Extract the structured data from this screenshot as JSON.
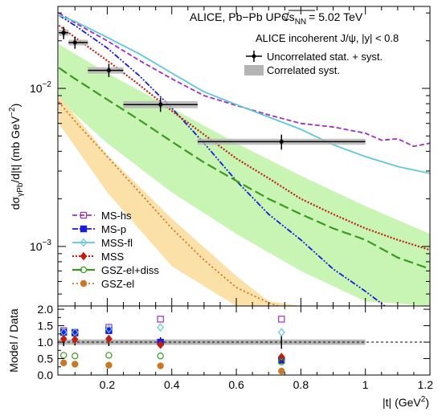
{
  "chart_data": [
    {
      "type": "line",
      "panel": "main",
      "title": "ALICE, Pb−Pb UPC",
      "energy_prefix": "√s",
      "energy_sub": "NN",
      "energy_value": "= 5.02 TeV",
      "ylabel": "dσγPb/d|t| (mb GeV⁻²)",
      "ylabel_main": "dσ",
      "ylabel_sub": "γPb",
      "ylabel_tail": "/d|t| (mb GeV",
      "ylabel_sup": "−2",
      "ylabel_close": ")",
      "xlim": [
        0.047,
        1.2
      ],
      "ylim": [
        0.00042,
        0.033
      ],
      "y_scale": "log",
      "ytick_labels": [
        {
          "value": 0.01,
          "base": "10",
          "exp": "−2"
        },
        {
          "value": 0.001,
          "base": "10",
          "exp": "−3"
        }
      ],
      "legend_top": {
        "header": "ALICE incoherent J/ψ, |y| < 0.8",
        "entries": [
          "Uncorrelated stat. + syst.",
          "Correlated syst."
        ]
      },
      "data_points": [
        {
          "x": 0.065,
          "xlo": 0.05,
          "xhi": 0.08,
          "y": 0.0225,
          "ylo": 0.0205,
          "yhi": 0.0245,
          "syst_lo": 0.0215,
          "syst_hi": 0.0235
        },
        {
          "x": 0.1,
          "xlo": 0.08,
          "xhi": 0.14,
          "y": 0.0195,
          "ylo": 0.0178,
          "yhi": 0.0212,
          "syst_lo": 0.0187,
          "syst_hi": 0.0203
        },
        {
          "x": 0.205,
          "xlo": 0.14,
          "xhi": 0.25,
          "y": 0.013,
          "ylo": 0.0118,
          "yhi": 0.0143,
          "syst_lo": 0.0124,
          "syst_hi": 0.0136
        },
        {
          "x": 0.365,
          "xlo": 0.25,
          "xhi": 0.48,
          "y": 0.0079,
          "ylo": 0.0071,
          "yhi": 0.0087,
          "syst_lo": 0.0075,
          "syst_hi": 0.0083
        },
        {
          "x": 0.74,
          "xlo": 0.48,
          "xhi": 1.0,
          "y": 0.0046,
          "ylo": 0.0041,
          "yhi": 0.0051,
          "syst_lo": 0.0044,
          "syst_hi": 0.0048
        }
      ],
      "bands": [
        {
          "name": "GSZ-el+diss",
          "color": "#c8f5b4",
          "x": [
            0.05,
            0.2,
            0.4,
            0.6,
            0.8,
            1.0,
            1.2
          ],
          "upper": [
            0.019,
            0.0125,
            0.0075,
            0.0045,
            0.0028,
            0.0018,
            0.0012
          ],
          "lower": [
            0.0085,
            0.0045,
            0.0022,
            0.0012,
            0.0007,
            0.00045,
            0.00042
          ]
        },
        {
          "name": "GSZ-el",
          "color": "#fbe0a8",
          "x": [
            0.05,
            0.2,
            0.4,
            0.6,
            0.7,
            0.8
          ],
          "upper": [
            0.009,
            0.0038,
            0.0015,
            0.00065,
            0.00045,
            0.00042
          ],
          "lower": [
            0.006,
            0.0022,
            0.00075,
            0.00042,
            0.00042,
            0.00042
          ]
        }
      ],
      "series": [
        {
          "name": "MS-hs",
          "color": "#a030c0",
          "x": [
            0.05,
            0.1,
            0.2,
            0.3,
            0.4,
            0.5,
            0.6,
            0.7,
            0.8,
            0.9,
            1.0,
            1.05,
            1.1,
            1.15,
            1.2
          ],
          "y": [
            0.03,
            0.026,
            0.02,
            0.015,
            0.0115,
            0.009,
            0.0078,
            0.0068,
            0.006,
            0.0057,
            0.0052,
            0.0047,
            0.0048,
            0.0043,
            0.0045
          ]
        },
        {
          "name": "MS-p",
          "color": "#1a1ad8",
          "x": [
            0.05,
            0.1,
            0.2,
            0.3,
            0.4,
            0.5,
            0.6,
            0.7,
            0.8,
            0.9,
            1.0,
            1.06
          ],
          "y": [
            0.029,
            0.025,
            0.018,
            0.012,
            0.0075,
            0.0045,
            0.0026,
            0.0016,
            0.0011,
            0.00072,
            0.00052,
            0.00042
          ]
        },
        {
          "name": "MSS-fl",
          "color": "#60c8d8",
          "x": [
            0.05,
            0.1,
            0.2,
            0.3,
            0.4,
            0.5,
            0.6,
            0.7,
            0.8,
            0.9,
            1.0,
            1.1,
            1.2
          ],
          "y": [
            0.029,
            0.0265,
            0.021,
            0.0165,
            0.0125,
            0.0095,
            0.0079,
            0.0066,
            0.0055,
            0.0044,
            0.0037,
            0.0032,
            0.0029
          ]
        },
        {
          "name": "MSS",
          "color": "#c02010",
          "x": [
            0.05,
            0.1,
            0.2,
            0.3,
            0.4,
            0.5,
            0.6,
            0.7,
            0.8,
            0.9,
            1.0,
            1.1,
            1.2
          ],
          "y": [
            0.025,
            0.021,
            0.015,
            0.0105,
            0.0072,
            0.0051,
            0.0036,
            0.0027,
            0.002,
            0.0016,
            0.0013,
            0.0011,
            0.00095
          ]
        },
        {
          "name": "GSZ-el+diss",
          "color": "#3a9a20",
          "x": [
            0.05,
            0.1,
            0.2,
            0.3,
            0.4,
            0.5,
            0.6,
            0.7,
            0.8,
            0.9,
            1.0,
            1.1,
            1.2
          ],
          "y": [
            0.0135,
            0.0115,
            0.0085,
            0.0063,
            0.0046,
            0.0034,
            0.0026,
            0.002,
            0.0016,
            0.0013,
            0.0011,
            0.00085,
            0.00072
          ]
        },
        {
          "name": "GSZ-el",
          "color": "#c87828",
          "x": [
            0.05,
            0.1,
            0.2,
            0.3,
            0.4,
            0.5,
            0.6,
            0.7,
            0.73
          ],
          "y": [
            0.0082,
            0.0062,
            0.0037,
            0.0022,
            0.0013,
            0.00082,
            0.00055,
            0.00044,
            0.00042
          ]
        }
      ],
      "legend_bottom": [
        "MS-hs",
        "MS-p",
        "MSS-fl",
        "MSS",
        "GSZ-el+diss",
        "GSZ-el"
      ]
    },
    {
      "type": "scatter",
      "panel": "ratio",
      "ylabel": "Model / Data",
      "xlabel": "|t| (GeV²)",
      "xlabel_main": "|t| (GeV",
      "xlabel_sup": "2",
      "xlabel_close": ")",
      "xlim": [
        0.047,
        1.2
      ],
      "ylim": [
        0.0,
        2.1
      ],
      "xticks": [
        0.2,
        0.4,
        0.6,
        0.8,
        1.0,
        1.2
      ],
      "xtick_labels": [
        "0.2",
        "0.4",
        "0.6",
        "0.8",
        "1",
        "1.2"
      ],
      "yticks": [
        0,
        0.5,
        1.0,
        1.5,
        2.0
      ],
      "ytick_labels": [
        "0.0",
        "0.5",
        "1.0",
        "1.5",
        "2.0"
      ],
      "reference_line": 1.0,
      "unity_band": [
        0.92,
        1.08
      ],
      "data_x": [
        0.065,
        0.1,
        0.205,
        0.365,
        0.74
      ],
      "data_err": [
        0.12,
        0.1,
        0.12,
        0.15,
        0.2
      ],
      "ratios": [
        {
          "name": "MS-hs",
          "y": [
            1.35,
            1.3,
            1.45,
            1.7,
            1.7
          ]
        },
        {
          "name": "MS-p",
          "y": [
            1.3,
            1.28,
            1.35,
            1.0,
            0.45
          ]
        },
        {
          "name": "MSS-fl",
          "y": [
            1.3,
            1.3,
            1.4,
            1.45,
            1.3
          ]
        },
        {
          "name": "MSS",
          "y": [
            1.1,
            1.08,
            1.1,
            0.92,
            0.55
          ]
        },
        {
          "name": "GSZ-el+diss",
          "y": [
            0.6,
            0.58,
            0.6,
            0.58,
            0.4
          ]
        },
        {
          "name": "GSZ-el",
          "y": [
            0.37,
            0.33,
            0.3,
            0.28,
            0.12
          ]
        }
      ]
    }
  ]
}
